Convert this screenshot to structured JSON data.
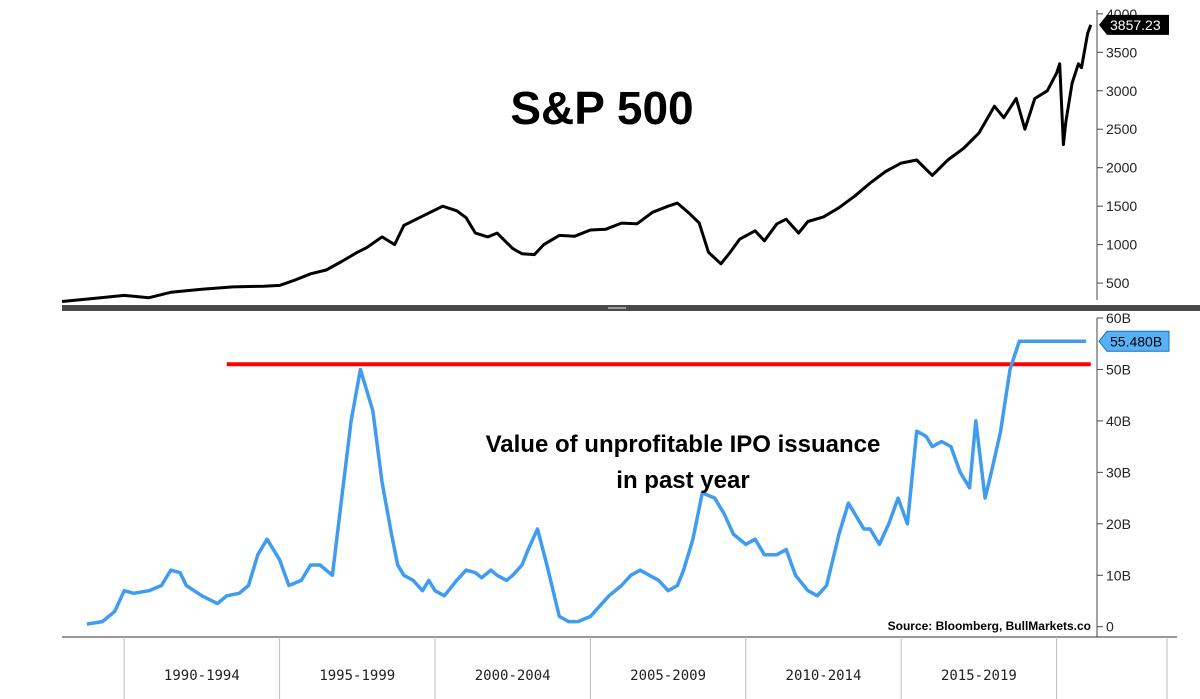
{
  "chart_data": [
    {
      "type": "line",
      "title": "S&P 500",
      "last_value_label": "3857.23",
      "yticks": [
        500,
        1000,
        1500,
        2000,
        2500,
        3000,
        3500,
        4000
      ],
      "ytick_labels": [
        "500",
        "1000",
        "1500",
        "2000",
        "2500",
        "3000",
        "3500",
        "4000"
      ],
      "ylim": [
        280,
        4050
      ],
      "xlim": [
        1988.0,
        2021.3
      ],
      "line_color": "#000000",
      "tag_bg": "#000000",
      "tag_text": "#ffffff",
      "series": [
        {
          "x": [
            1988.0,
            1989.0,
            1990.0,
            1990.8,
            1991.5,
            1992.5,
            1993.5,
            1994.5,
            1995.0,
            1995.5,
            1996.0,
            1996.5,
            1997.0,
            1997.5,
            1997.8,
            1998.3,
            1998.7,
            1999.0,
            1999.5,
            2000.0,
            2000.25,
            2000.7,
            2001.0,
            2001.3,
            2001.7,
            2002.0,
            2002.5,
            2002.8,
            2003.2,
            2003.5,
            2004.0,
            2004.5,
            2005.0,
            2005.5,
            2006.0,
            2006.5,
            2007.0,
            2007.5,
            2007.8,
            2008.2,
            2008.5,
            2008.8,
            2009.2,
            2009.5,
            2009.8,
            2010.3,
            2010.6,
            2011.0,
            2011.3,
            2011.7,
            2012.0,
            2012.5,
            2013.0,
            2013.5,
            2014.0,
            2014.5,
            2015.0,
            2015.5,
            2016.0,
            2016.5,
            2017.0,
            2017.5,
            2018.0,
            2018.3,
            2018.7,
            2018.98,
            2019.3,
            2019.7,
            2020.0,
            2020.1,
            2020.22,
            2020.3,
            2020.5,
            2020.7,
            2020.8,
            2021.0,
            2021.1
          ],
          "y": [
            260,
            300,
            340,
            310,
            380,
            420,
            450,
            460,
            470,
            540,
            620,
            670,
            780,
            900,
            960,
            1100,
            1000,
            1250,
            1350,
            1450,
            1500,
            1440,
            1350,
            1150,
            1100,
            1150,
            950,
            880,
            870,
            1000,
            1120,
            1110,
            1190,
            1200,
            1280,
            1270,
            1420,
            1500,
            1540,
            1400,
            1280,
            900,
            750,
            900,
            1070,
            1180,
            1050,
            1270,
            1330,
            1150,
            1300,
            1360,
            1480,
            1630,
            1800,
            1950,
            2060,
            2100,
            1900,
            2100,
            2250,
            2450,
            2800,
            2650,
            2900,
            2500,
            2900,
            3000,
            3230,
            3350,
            2300,
            2600,
            3100,
            3350,
            3300,
            3750,
            3857
          ]
        }
      ]
    },
    {
      "type": "line",
      "annotation": [
        "Value of unprofitable IPO issuance",
        "in past year"
      ],
      "source": "Source: Bloomberg, BullMarkets.co",
      "last_value_label": "55.480B",
      "yticks": [
        0,
        10,
        20,
        30,
        40,
        50,
        60
      ],
      "ytick_labels": [
        "0",
        "10B",
        "20B",
        "30B",
        "40B",
        "50B",
        "60B"
      ],
      "ylim": [
        -2,
        60
      ],
      "xlim": [
        1988.0,
        2021.3
      ],
      "x_categories": [
        "1990-1994",
        "1995-1999",
        "2000-2004",
        "2005-2009",
        "2010-2014",
        "2015-2019"
      ],
      "category_boundaries": [
        1990,
        1995,
        2000,
        2005,
        2010,
        2015,
        2020
      ],
      "reference_line": 51,
      "reference_line_start": 1993.3,
      "line_color": "#3f9cf0",
      "reference_color": "#ff0000",
      "tag_bg": "#56b2f5",
      "tag_text": "#000000",
      "series": [
        {
          "x": [
            1988.8,
            1989.3,
            1989.7,
            1990.0,
            1990.3,
            1990.8,
            1991.2,
            1991.5,
            1991.8,
            1992.0,
            1992.5,
            1993.0,
            1993.3,
            1993.7,
            1994.0,
            1994.3,
            1994.6,
            1995.0,
            1995.3,
            1995.7,
            1996.0,
            1996.3,
            1996.7,
            1997.0,
            1997.3,
            1997.6,
            1998.0,
            1998.3,
            1998.6,
            1998.8,
            1999.0,
            1999.3,
            1999.6,
            1999.8,
            2000.0,
            2000.3,
            2000.7,
            2001.0,
            2001.3,
            2001.5,
            2001.8,
            2002.0,
            2002.3,
            2002.5,
            2002.8,
            2003.0,
            2003.3,
            2003.6,
            2004.0,
            2004.3,
            2004.6,
            2005.0,
            2005.3,
            2005.6,
            2006.0,
            2006.3,
            2006.6,
            2006.9,
            2007.2,
            2007.5,
            2007.8,
            2008.0,
            2008.3,
            2008.6,
            2009.0,
            2009.3,
            2009.6,
            2010.0,
            2010.3,
            2010.6,
            2011.0,
            2011.3,
            2011.6,
            2012.0,
            2012.3,
            2012.6,
            2013.0,
            2013.3,
            2013.5,
            2013.8,
            2014.0,
            2014.3,
            2014.6,
            2014.9,
            2015.2,
            2015.5,
            2015.8,
            2016.0,
            2016.3,
            2016.6,
            2016.9,
            2017.2,
            2017.4,
            2017.7,
            2017.9,
            2018.2,
            2018.5,
            2018.8,
            2019.0,
            2019.2,
            2019.4,
            2019.6,
            2019.8,
            2020.0,
            2020.2,
            2020.4,
            2020.6,
            2020.8,
            2020.95
          ],
          "y": [
            0.5,
            1,
            3,
            7,
            6.5,
            7,
            8,
            11,
            10.5,
            8,
            6,
            4.5,
            6,
            6.5,
            8,
            14,
            17,
            13,
            8,
            9,
            12,
            12,
            10,
            25,
            40,
            50,
            42,
            28,
            18,
            12,
            10,
            9,
            7,
            9,
            7,
            6,
            9,
            11,
            10.5,
            9.5,
            11,
            10,
            9,
            10,
            12,
            15,
            19,
            12,
            2,
            1,
            1,
            2,
            4,
            6,
            8,
            10,
            11,
            10,
            9,
            7,
            8,
            11,
            17,
            26,
            25,
            22,
            18,
            16,
            17,
            14,
            14,
            15,
            10,
            7,
            6,
            8,
            18,
            24,
            22,
            19,
            19,
            16,
            20,
            25,
            20,
            38,
            37,
            35,
            36,
            35,
            30,
            27,
            40,
            25,
            30,
            38,
            50,
            55.48,
            55.48,
            55.48,
            55.48,
            55.48,
            55.48,
            55.48,
            55.48,
            55.48,
            55.48,
            55.48,
            55.48
          ]
        }
      ]
    }
  ]
}
